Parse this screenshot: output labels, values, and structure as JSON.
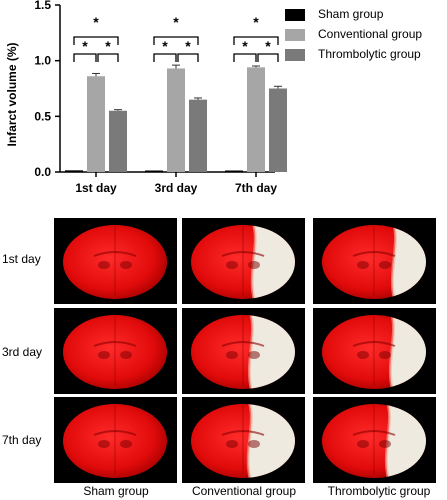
{
  "chart_data": {
    "type": "bar",
    "ylabel": "Infarct volume (%)",
    "ylim": [
      0,
      1.5
    ],
    "yticks": [
      "0.0",
      "0.5",
      "1.0",
      "1.5"
    ],
    "categories": [
      "1st day",
      "3rd day",
      "7th day"
    ],
    "series": [
      {
        "name": "Sham group",
        "color": "#000000",
        "values": [
          0.015,
          0.01,
          0.005
        ],
        "errors": [
          0.005,
          0.005,
          0.003
        ]
      },
      {
        "name": "Conventional group",
        "color": "#a6a6a6",
        "values": [
          0.86,
          0.93,
          0.94
        ],
        "errors": [
          0.025,
          0.03,
          0.012
        ]
      },
      {
        "name": "Thrombolytic group",
        "color": "#7a7a7a",
        "values": [
          0.55,
          0.65,
          0.75
        ],
        "errors": [
          0.01,
          0.015,
          0.02
        ]
      }
    ],
    "significance_marker": "*",
    "legend_position": "top-right"
  },
  "images": {
    "row_labels": [
      "1st day",
      "3rd day",
      "7th day"
    ],
    "col_labels": [
      "Sham group",
      "Conventional group",
      "Thrombolytic group"
    ],
    "lesion_extent": [
      [
        0,
        0.78,
        0.55
      ],
      [
        0,
        0.85,
        0.6
      ],
      [
        0,
        0.88,
        0.7
      ]
    ]
  }
}
